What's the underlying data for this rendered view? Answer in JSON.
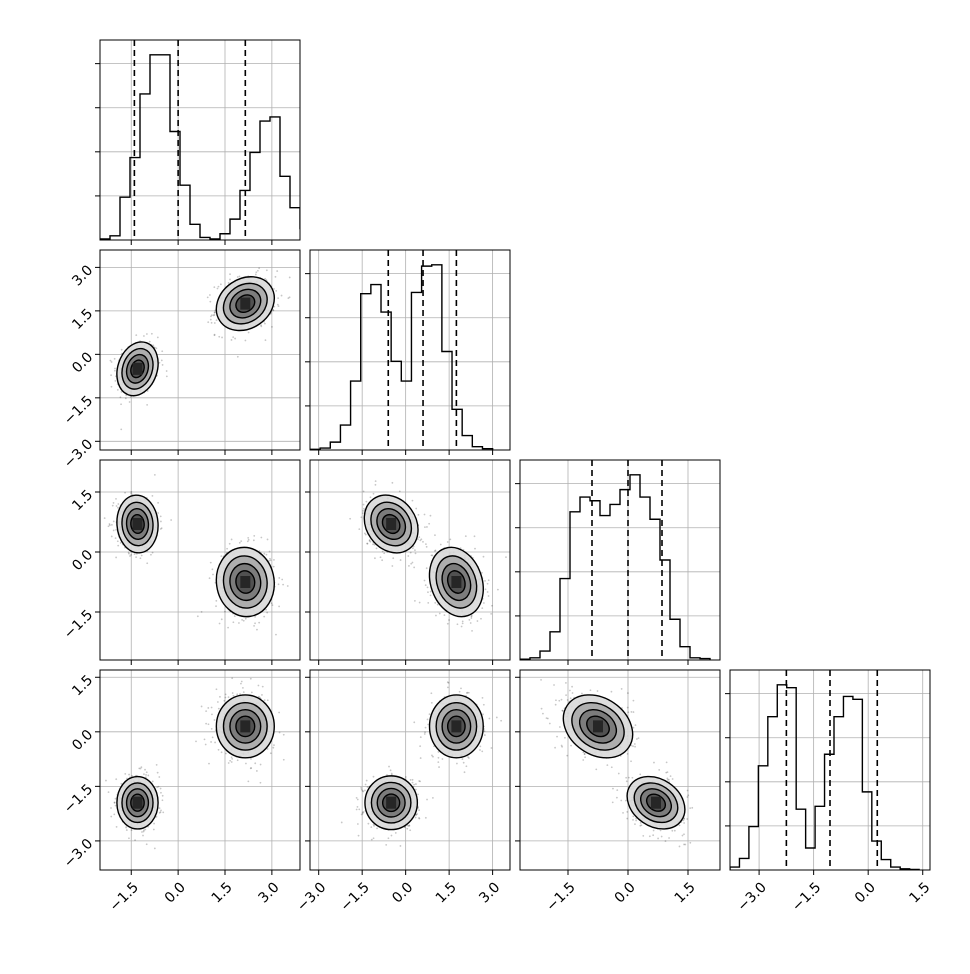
{
  "chart_data": {
    "type": "corner",
    "description_of_panels": "lower-triangle 2D density/contour panels, diagonal 1D histograms with dashed quantile lines",
    "variables": 4,
    "styles": {
      "hist_color": "#000000",
      "quantile_line": "dashed",
      "grid_color": "#b0b0b0",
      "scatter_color": "#000000",
      "contour_fills": [
        "#ffffff",
        "#d9d9d9",
        "#a8a8a8",
        "#777777",
        "#4d4d4d"
      ]
    },
    "ranges": [
      [
        -2.5,
        3.9
      ],
      [
        -3.3,
        3.6
      ],
      [
        -2.7,
        2.3
      ],
      [
        -3.8,
        1.7
      ]
    ],
    "ticks": [
      {
        "values": [
          -1.5,
          0.0,
          1.5,
          3.0
        ],
        "labels": [
          "−1.5",
          "0.0",
          "1.5",
          "3.0"
        ]
      },
      {
        "values": [
          -3.0,
          -1.5,
          0.0,
          1.5,
          3.0
        ],
        "labels": [
          "−3.0",
          "−1.5",
          "0.0",
          "1.5",
          "3.0"
        ]
      },
      {
        "values": [
          -1.5,
          0.0,
          1.5
        ],
        "labels": [
          "−1.5",
          "0.0",
          "1.5"
        ]
      },
      {
        "values": [
          -3.0,
          -1.5,
          0.0,
          1.5
        ],
        "labels": [
          "−3.0",
          "−1.5",
          "0.0",
          "1.5"
        ]
      }
    ],
    "quantiles": [
      [
        -1.4,
        0.0,
        2.15
      ],
      [
        -0.6,
        0.6,
        1.75
      ],
      [
        -0.9,
        0.0,
        0.85
      ],
      [
        -2.25,
        -1.05,
        0.25
      ]
    ],
    "histograms": [
      {
        "bin_start": -2.5,
        "bin_width": 0.32,
        "counts": [
          2,
          8,
          82,
          158,
          280,
          355,
          355,
          208,
          105,
          30,
          5,
          2,
          12,
          40,
          95,
          168,
          228,
          236,
          122,
          62,
          22,
          8,
          2
        ]
      },
      {
        "bin_start": -3.3,
        "bin_width": 0.35,
        "counts": [
          1,
          3,
          12,
          38,
          105,
          238,
          252,
          210,
          135,
          105,
          240,
          280,
          282,
          150,
          62,
          22,
          5,
          2
        ]
      },
      {
        "bin_start": -2.7,
        "bin_width": 0.25,
        "counts": [
          1,
          3,
          12,
          38,
          110,
          200,
          220,
          215,
          195,
          210,
          230,
          250,
          220,
          190,
          135,
          55,
          18,
          3,
          2
        ]
      },
      {
        "bin_start": -3.8,
        "bin_width": 0.26,
        "counts": [
          5,
          20,
          75,
          180,
          265,
          320,
          315,
          105,
          38,
          110,
          200,
          265,
          300,
          295,
          135,
          50,
          18,
          5,
          2,
          1
        ]
      }
    ],
    "clusters": [
      {
        "weight": 0.5,
        "mean": [
          -1.3,
          -0.5,
          0.7,
          -1.95
        ],
        "sd": [
          0.32,
          0.45,
          0.35,
          0.35
        ]
      },
      {
        "weight": 0.5,
        "mean": [
          2.15,
          1.75,
          -0.75,
          0.15
        ],
        "sd": [
          0.45,
          0.45,
          0.42,
          0.42
        ]
      }
    ],
    "pair_correlations": {
      "0-1": 0.2,
      "0-2": -0.05,
      "0-3": 0.0,
      "1-2": -0.2,
      "1-3": 0.0,
      "2-3": -0.25
    },
    "contour_levels_relative": [
      0.12,
      0.3,
      0.55,
      0.8
    ]
  }
}
